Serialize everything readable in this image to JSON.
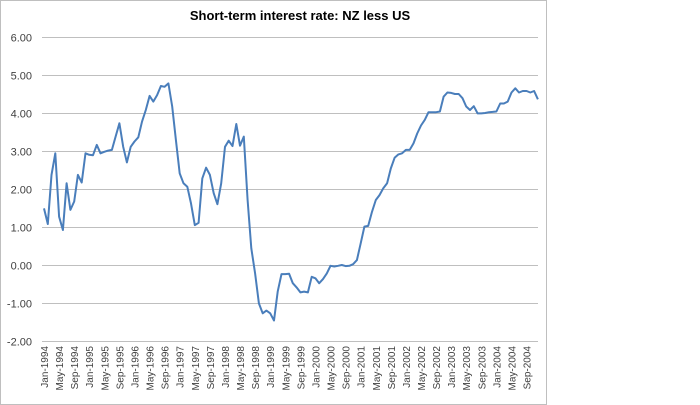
{
  "chart_data": {
    "type": "line",
    "title": "Short-term interest rate: NZ less US",
    "xlabel": "",
    "ylabel": "",
    "ylim": [
      -2,
      6
    ],
    "yticks": [
      "6.00",
      "5.00",
      "4.00",
      "3.00",
      "2.00",
      "1.00",
      "0.00",
      "-1.00",
      "-2.00"
    ],
    "ytick_values": [
      6,
      5,
      4,
      3,
      2,
      1,
      0,
      -1,
      -2
    ],
    "grid": true,
    "legend": "none",
    "x_frequency": "monthly",
    "x_range": [
      "Jan-1994",
      "Dec-2004"
    ],
    "tick_labels": [
      "Jan-1994",
      "May-1994",
      "Sep-1994",
      "Jan-1995",
      "May-1995",
      "Sep-1995",
      "Jan-1996",
      "May-1996",
      "Sep-1996",
      "Jan-1997",
      "May-1997",
      "Sep-1997",
      "Jan-1998",
      "May-1998",
      "Sep-1998",
      "Jan-1999",
      "May-1999",
      "Sep-1999",
      "Jan-2000",
      "May-2000",
      "Sep-2000",
      "Jan-2001",
      "May-2001",
      "Sep-2001",
      "Jan-2002",
      "May-2002",
      "Sep-2002",
      "Jan-2003",
      "May-2003",
      "Sep-2003",
      "Jan-2004",
      "May-2004",
      "Sep-2004"
    ],
    "series": [
      {
        "color": "#4a7ebb",
        "values": [
          1.49,
          1.08,
          2.37,
          2.94,
          1.27,
          0.92,
          2.15,
          1.45,
          1.67,
          2.37,
          2.17,
          2.94,
          2.9,
          2.89,
          3.16,
          2.94,
          2.98,
          3.01,
          3.03,
          3.38,
          3.73,
          3.11,
          2.7,
          3.11,
          3.25,
          3.36,
          3.77,
          4.08,
          4.45,
          4.3,
          4.47,
          4.71,
          4.69,
          4.78,
          4.17,
          3.29,
          2.41,
          2.15,
          2.06,
          1.62,
          1.05,
          1.11,
          2.28,
          2.56,
          2.37,
          1.89,
          1.6,
          2.15,
          3.11,
          3.27,
          3.13,
          3.71,
          3.14,
          3.38,
          1.71,
          0.44,
          -0.22,
          -1.01,
          -1.27,
          -1.2,
          -1.27,
          -1.46,
          -0.7,
          -0.24,
          -0.24,
          -0.23,
          -0.48,
          -0.59,
          -0.72,
          -0.7,
          -0.72,
          -0.31,
          -0.35,
          -0.48,
          -0.37,
          -0.22,
          -0.02,
          -0.04,
          -0.02,
          0.0,
          -0.03,
          -0.02,
          0.02,
          0.13,
          0.57,
          1.01,
          1.03,
          1.4,
          1.71,
          1.84,
          2.02,
          2.15,
          2.54,
          2.82,
          2.91,
          2.94,
          3.03,
          3.03,
          3.2,
          3.46,
          3.67,
          3.82,
          4.02,
          4.02,
          4.02,
          4.04,
          4.43,
          4.54,
          4.53,
          4.5,
          4.5,
          4.39,
          4.17,
          4.08,
          4.18,
          3.99,
          3.99,
          4.0,
          4.02,
          4.03,
          4.04,
          4.25,
          4.25,
          4.3,
          4.54,
          4.65,
          4.54,
          4.58,
          4.58,
          4.54,
          4.58,
          4.36
        ]
      }
    ]
  }
}
